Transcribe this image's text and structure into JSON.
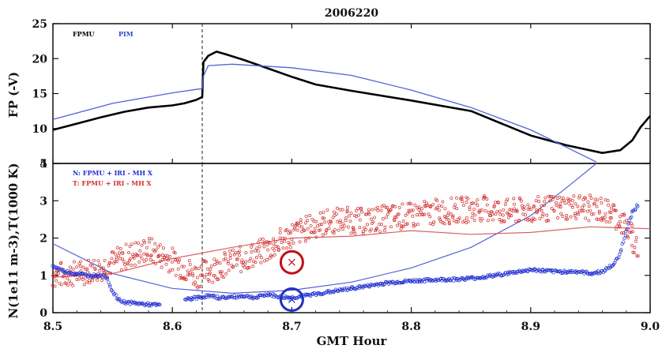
{
  "chart_data": [
    {
      "type": "line",
      "title": "2006220",
      "xlabel": "",
      "ylabel": "FP (-V)",
      "xlim": [
        8.5,
        9.0
      ],
      "ylim": [
        5,
        25
      ],
      "yticks": [
        "5",
        "10",
        "15",
        "20",
        "25"
      ],
      "vline_x": 8.625,
      "legend": {
        "position": "top-left",
        "entries": [
          "FPMU",
          "PIM"
        ]
      },
      "series": [
        {
          "name": "FPMU",
          "color": "#000000",
          "x": [
            8.5,
            8.52,
            8.54,
            8.56,
            8.58,
            8.6,
            8.61,
            8.62,
            8.625,
            8.626,
            8.63,
            8.637,
            8.645,
            8.66,
            8.68,
            8.7,
            8.72,
            8.75,
            8.8,
            8.85,
            8.9,
            8.93,
            8.96,
            8.975,
            8.985,
            8.992,
            9.0
          ],
          "values": [
            9.8,
            10.7,
            11.6,
            12.4,
            13.0,
            13.3,
            13.6,
            14.1,
            14.5,
            19.5,
            20.4,
            21.0,
            20.6,
            19.8,
            18.6,
            17.4,
            16.3,
            15.4,
            14.0,
            12.5,
            9.0,
            7.6,
            6.5,
            6.9,
            8.3,
            10.2,
            11.8
          ]
        },
        {
          "name": "PIM",
          "color": "#5560d8",
          "x": [
            8.5,
            8.55,
            8.6,
            8.62,
            8.625,
            8.626,
            8.63,
            8.65,
            8.7,
            8.75,
            8.8,
            8.85,
            8.9,
            8.93,
            8.955
          ],
          "values": [
            11.3,
            13.6,
            15.1,
            15.6,
            15.7,
            17.5,
            19.0,
            19.2,
            18.7,
            17.6,
            15.5,
            13.0,
            9.8,
            7.3,
            5.2
          ]
        }
      ]
    },
    {
      "type": "scatter",
      "title": "",
      "xlabel": "GMT Hour",
      "ylabel": "N(1e11 m-3),T(1000 K)",
      "xlim": [
        8.5,
        9.0
      ],
      "ylim": [
        0,
        4
      ],
      "xticks": [
        "8.5",
        "8.6",
        "8.7",
        "8.8",
        "8.9",
        "9.0"
      ],
      "yticks": [
        "0",
        "1",
        "2",
        "3",
        "4"
      ],
      "vline_x": 8.625,
      "legend": {
        "position": "top-left",
        "entries": [
          "N: FPMU +  IRI -  MH X",
          "T: FPMU +  IRI -  MH X"
        ]
      },
      "series": [
        {
          "name": "N FPMU",
          "color": "#1f2fd0",
          "x": [
            8.5,
            8.51,
            8.52,
            8.53,
            8.54,
            8.545,
            8.55,
            8.555,
            8.56,
            8.57,
            8.58,
            8.59,
            8.6,
            8.61,
            8.62,
            8.63,
            8.64,
            8.65,
            8.66,
            8.67,
            8.68,
            8.69,
            8.7,
            8.71,
            8.72,
            8.74,
            8.76,
            8.78,
            8.8,
            8.82,
            8.84,
            8.86,
            8.88,
            8.9,
            8.92,
            8.94,
            8.95,
            8.96,
            8.97,
            8.975,
            8.98,
            8.985,
            8.99
          ],
          "values": [
            1.25,
            1.1,
            1.05,
            1.0,
            1.0,
            0.95,
            0.55,
            0.35,
            0.28,
            0.25,
            0.22,
            0.2,
            null,
            0.35,
            0.4,
            0.45,
            0.4,
            0.42,
            0.45,
            0.4,
            0.5,
            0.42,
            0.4,
            0.45,
            0.5,
            0.6,
            0.7,
            0.8,
            0.85,
            0.88,
            0.9,
            0.95,
            1.05,
            1.15,
            1.1,
            1.1,
            1.05,
            1.1,
            1.3,
            1.6,
            2.2,
            2.7,
            2.9
          ]
        },
        {
          "name": "N IRI",
          "color": "#5560d8",
          "x": [
            8.5,
            8.55,
            8.6,
            8.65,
            8.7,
            8.75,
            8.8,
            8.85,
            8.9,
            8.93,
            8.955
          ],
          "values": [
            1.85,
            1.05,
            0.65,
            0.52,
            0.6,
            0.82,
            1.2,
            1.75,
            2.6,
            3.35,
            4.0
          ]
        },
        {
          "name": "T FPMU",
          "color": "#d03030",
          "x": [
            8.5,
            8.52,
            8.54,
            8.56,
            8.58,
            8.6,
            8.62,
            8.64,
            8.66,
            8.68,
            8.7,
            8.72,
            8.74,
            8.76,
            8.78,
            8.8,
            8.82,
            8.84,
            8.86,
            8.88,
            8.9,
            8.92,
            8.94,
            8.96,
            8.97,
            8.98,
            8.99
          ],
          "values": [
            1.0,
            1.05,
            1.2,
            1.5,
            1.7,
            1.4,
            1.0,
            1.25,
            1.45,
            1.7,
            2.1,
            2.35,
            2.5,
            2.45,
            2.55,
            2.6,
            2.7,
            2.75,
            2.8,
            2.7,
            2.75,
            2.8,
            2.85,
            2.75,
            2.65,
            2.3,
            1.7
          ]
        },
        {
          "name": "T IRI",
          "color": "#d86060",
          "x": [
            8.5,
            8.55,
            8.6,
            8.65,
            8.7,
            8.75,
            8.8,
            8.85,
            8.9,
            8.95,
            9.0
          ],
          "values": [
            0.95,
            1.05,
            1.45,
            1.75,
            2.0,
            2.05,
            2.2,
            2.1,
            2.15,
            2.3,
            2.25
          ]
        },
        {
          "name": "T MH",
          "color": "#c0101a",
          "x": [
            8.7
          ],
          "values": [
            1.35
          ]
        },
        {
          "name": "N MH",
          "color": "#2030c0",
          "x": [
            8.7
          ],
          "values": [
            0.35
          ]
        }
      ]
    }
  ]
}
